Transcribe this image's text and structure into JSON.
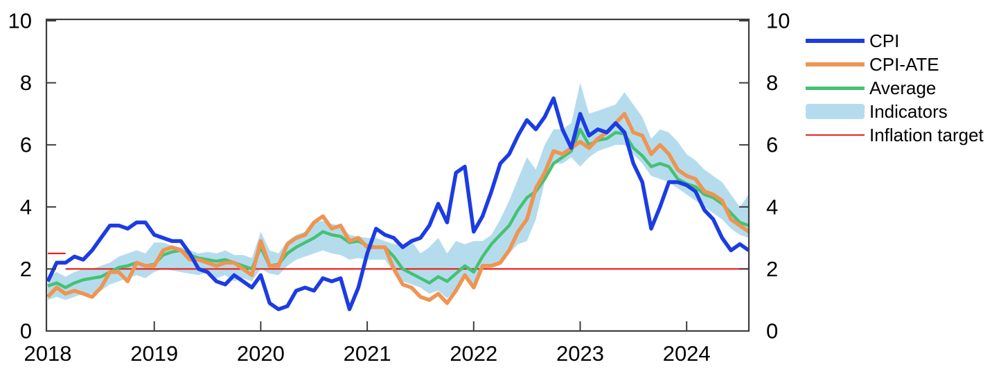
{
  "chart_data": {
    "type": "line",
    "title": "",
    "x_start_month": "2018-01",
    "x_end_month": "2024-08",
    "xlim": [
      2018.0,
      2024.667
    ],
    "ylim": [
      0,
      10
    ],
    "yticks": [
      "0",
      "2",
      "4",
      "6",
      "8",
      "10"
    ],
    "ytick_values": [
      0,
      2,
      4,
      6,
      8,
      10
    ],
    "xticks": [
      "2018",
      "2019",
      "2020",
      "2021",
      "2022",
      "2023",
      "2024"
    ],
    "xtick_values": [
      2018,
      2019,
      2020,
      2021,
      2022,
      2023,
      2024
    ],
    "grid": false,
    "legend_position": "right-top",
    "axis_color": "#3d3d3d",
    "label_color": "#000000",
    "legend": [
      "CPI",
      "CPI-ATE",
      "Average",
      "Indicators",
      "Inflation target"
    ],
    "series": [
      {
        "name": "CPI",
        "type": "line",
        "color": "#1c3ce3",
        "width": 5.5,
        "values": [
          1.6,
          2.2,
          2.2,
          2.4,
          2.3,
          2.6,
          3.0,
          3.4,
          3.4,
          3.3,
          3.5,
          3.5,
          3.1,
          3.0,
          2.9,
          2.9,
          2.5,
          2.0,
          1.9,
          1.6,
          1.5,
          1.8,
          1.6,
          1.4,
          1.8,
          0.9,
          0.7,
          0.8,
          1.3,
          1.4,
          1.3,
          1.7,
          1.6,
          1.7,
          0.7,
          1.4,
          2.5,
          3.3,
          3.1,
          3.0,
          2.7,
          2.9,
          3.0,
          3.4,
          4.1,
          3.5,
          5.1,
          5.3,
          3.2,
          3.7,
          4.5,
          5.4,
          5.7,
          6.3,
          6.8,
          6.5,
          6.9,
          7.5,
          6.5,
          5.9,
          7.0,
          6.3,
          6.5,
          6.4,
          6.7,
          6.4,
          5.4,
          4.8,
          3.3,
          4.0,
          4.8,
          4.8,
          4.7,
          4.5,
          3.9,
          3.6,
          3.0,
          2.6,
          2.8,
          2.6
        ]
      },
      {
        "name": "CPI-ATE",
        "type": "line",
        "color": "#ef9451",
        "width": 5.5,
        "values": [
          1.1,
          1.4,
          1.2,
          1.3,
          1.2,
          1.1,
          1.4,
          1.9,
          1.9,
          1.6,
          2.2,
          2.1,
          2.1,
          2.6,
          2.7,
          2.6,
          2.3,
          2.3,
          2.2,
          2.1,
          2.2,
          2.2,
          2.0,
          1.8,
          2.9,
          2.1,
          2.1,
          2.8,
          3.0,
          3.1,
          3.5,
          3.7,
          3.3,
          3.4,
          2.9,
          3.0,
          2.7,
          2.7,
          2.7,
          2.0,
          1.5,
          1.4,
          1.1,
          1.0,
          1.2,
          0.9,
          1.3,
          1.8,
          1.4,
          2.1,
          2.1,
          2.2,
          2.6,
          3.2,
          3.6,
          4.6,
          5.1,
          5.8,
          5.7,
          5.9,
          6.1,
          5.9,
          6.2,
          6.4,
          6.7,
          7.0,
          6.4,
          6.3,
          5.7,
          6.0,
          5.7,
          5.2,
          5.0,
          4.9,
          4.5,
          4.4,
          4.2,
          3.6,
          3.4,
          3.2
        ]
      },
      {
        "name": "Average",
        "type": "line",
        "color": "#45c173",
        "width": 4.5,
        "values": [
          1.45,
          1.55,
          1.4,
          1.55,
          1.65,
          1.7,
          1.75,
          1.9,
          2.05,
          2.1,
          2.2,
          2.1,
          2.15,
          2.45,
          2.55,
          2.6,
          2.45,
          2.35,
          2.3,
          2.25,
          2.3,
          2.2,
          2.1,
          2.0,
          2.7,
          2.1,
          2.15,
          2.5,
          2.7,
          2.85,
          3.0,
          3.2,
          3.1,
          3.05,
          2.85,
          2.9,
          2.75,
          2.7,
          2.7,
          2.4,
          2.0,
          1.85,
          1.7,
          1.55,
          1.75,
          1.6,
          1.85,
          2.1,
          1.9,
          2.4,
          2.8,
          3.1,
          3.4,
          3.9,
          4.3,
          4.5,
          4.9,
          5.4,
          5.6,
          5.8,
          6.5,
          6.0,
          6.15,
          6.2,
          6.4,
          6.35,
          5.9,
          5.65,
          5.3,
          5.4,
          5.3,
          4.9,
          4.75,
          4.65,
          4.4,
          4.3,
          4.1,
          3.8,
          3.5,
          3.4
        ]
      },
      {
        "name": "Indicators",
        "type": "band",
        "color": "#b5dced",
        "lo": [
          1.0,
          1.1,
          1.0,
          1.1,
          1.2,
          1.2,
          1.3,
          1.5,
          1.6,
          1.7,
          1.8,
          1.7,
          1.9,
          2.0,
          1.95,
          1.9,
          1.85,
          1.8,
          1.9,
          1.7,
          1.8,
          1.6,
          1.7,
          1.6,
          2.0,
          1.85,
          1.8,
          2.1,
          2.3,
          2.4,
          2.5,
          2.6,
          2.5,
          2.45,
          2.3,
          2.35,
          2.3,
          2.3,
          2.3,
          1.9,
          1.6,
          1.5,
          1.4,
          1.2,
          1.3,
          1.05,
          1.35,
          1.75,
          1.35,
          2.0,
          2.05,
          2.2,
          2.5,
          2.8,
          2.9,
          3.6,
          4.8,
          5.4,
          5.4,
          5.6,
          5.3,
          5.6,
          5.8,
          5.9,
          6.0,
          6.0,
          5.7,
          5.4,
          5.0,
          4.9,
          4.8,
          4.6,
          4.4,
          4.2,
          4.0,
          3.8,
          3.6,
          3.3,
          3.1,
          3.0
        ],
        "hi": [
          1.75,
          1.9,
          1.75,
          1.9,
          2.0,
          2.0,
          2.1,
          2.2,
          2.4,
          2.5,
          2.6,
          2.5,
          2.85,
          2.85,
          2.75,
          2.7,
          2.6,
          2.5,
          2.55,
          2.5,
          2.6,
          2.45,
          2.45,
          2.35,
          3.2,
          2.6,
          2.5,
          2.9,
          3.1,
          3.2,
          3.5,
          3.55,
          3.45,
          3.4,
          3.1,
          3.05,
          3.0,
          3.0,
          2.9,
          2.8,
          2.8,
          2.9,
          2.5,
          2.7,
          3.0,
          2.5,
          2.9,
          2.8,
          2.9,
          2.9,
          3.1,
          3.6,
          4.2,
          4.9,
          5.6,
          5.2,
          6.0,
          6.5,
          6.5,
          6.7,
          8.0,
          7.0,
          7.1,
          7.2,
          7.3,
          7.7,
          7.3,
          6.9,
          6.2,
          6.5,
          6.4,
          6.1,
          5.7,
          5.5,
          5.2,
          5.0,
          4.8,
          4.4,
          4.0,
          4.4
        ]
      },
      {
        "name": "Inflation target",
        "type": "segments",
        "color": "#e8241f",
        "width": 2.2,
        "segments": [
          {
            "x0": 2018.0,
            "x1": 2018.167,
            "y": 2.5
          },
          {
            "x0": 2018.167,
            "x1": 2024.667,
            "y": 2.0
          }
        ]
      }
    ]
  }
}
